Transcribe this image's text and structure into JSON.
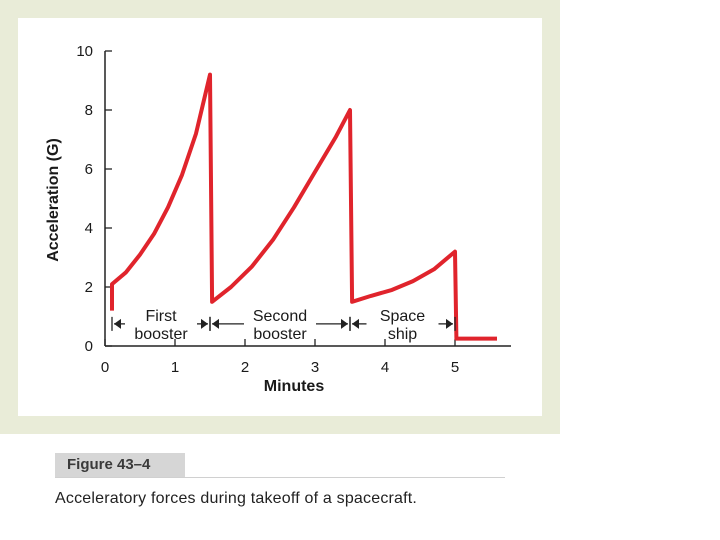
{
  "figure": {
    "label": "Figure 43–4",
    "caption": "Acceleratory forces during takeoff of a spacecraft."
  },
  "chart_data": {
    "type": "line",
    "title": "",
    "xlabel": "Minutes",
    "ylabel": "Acceleration (G)",
    "xlim": [
      0,
      5.8
    ],
    "ylim": [
      0,
      10
    ],
    "x_ticks": [
      0,
      1,
      2,
      3,
      4,
      5
    ],
    "y_ticks": [
      0,
      2,
      4,
      6,
      8,
      10
    ],
    "series": [
      {
        "name": "Acceleration",
        "color": "#e0242c",
        "points": [
          [
            0.1,
            1.2
          ],
          [
            0.1,
            2.1
          ],
          [
            0.3,
            2.5
          ],
          [
            0.5,
            3.1
          ],
          [
            0.7,
            3.8
          ],
          [
            0.9,
            4.7
          ],
          [
            1.1,
            5.8
          ],
          [
            1.3,
            7.2
          ],
          [
            1.5,
            9.2
          ],
          [
            1.53,
            1.5
          ],
          [
            1.8,
            2.0
          ],
          [
            2.1,
            2.7
          ],
          [
            2.4,
            3.6
          ],
          [
            2.7,
            4.7
          ],
          [
            3.0,
            5.9
          ],
          [
            3.3,
            7.1
          ],
          [
            3.5,
            8.0
          ],
          [
            3.53,
            1.5
          ],
          [
            3.8,
            1.7
          ],
          [
            4.1,
            1.9
          ],
          [
            4.4,
            2.2
          ],
          [
            4.7,
            2.6
          ],
          [
            5.0,
            3.2
          ],
          [
            5.02,
            0.25
          ],
          [
            5.6,
            0.25
          ]
        ]
      }
    ],
    "phases": [
      {
        "label_line1": "First",
        "label_line2": "booster",
        "start": 0.1,
        "end": 1.5
      },
      {
        "label_line1": "Second",
        "label_line2": "booster",
        "start": 1.5,
        "end": 3.5
      },
      {
        "label_line1": "Space",
        "label_line2": "ship",
        "start": 3.5,
        "end": 5.0
      }
    ],
    "grid": false
  }
}
